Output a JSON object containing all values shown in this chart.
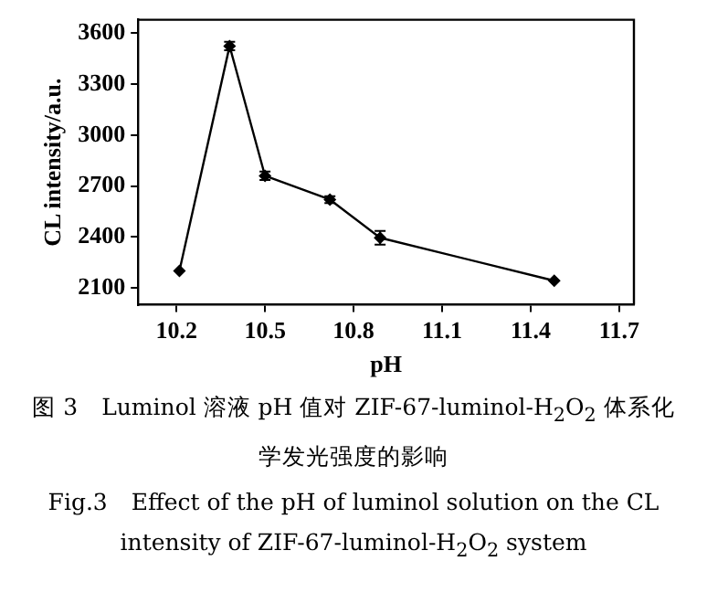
{
  "chart_data": {
    "type": "line",
    "xlabel": "pH",
    "ylabel": "CL intensity/a.u.",
    "x": [
      10.21,
      10.38,
      10.5,
      10.72,
      10.89,
      11.48
    ],
    "series": [
      {
        "color": "#000000",
        "values": [
          2200,
          3525,
          2760,
          2620,
          2395,
          2142
        ],
        "errors": [
          null,
          25,
          25,
          20,
          40,
          null
        ]
      }
    ],
    "xlim": [
      10.07,
      11.75
    ],
    "xticks": [
      {
        "value": 10.2,
        "label": "10.2"
      },
      {
        "value": 10.5,
        "label": "10.5"
      },
      {
        "value": 10.8,
        "label": "10.8"
      },
      {
        "value": 11.1,
        "label": "11.1"
      },
      {
        "value": 11.4,
        "label": "11.4"
      },
      {
        "value": 11.7,
        "label": "11.7"
      }
    ],
    "ylim": [
      2000,
      3680
    ],
    "yticks": [
      2100,
      2400,
      2700,
      3000,
      3300,
      3600
    ],
    "grid": false,
    "legend": false,
    "marker": "diamond",
    "line_style": "solid",
    "annotations": [
      "图 3　Luminol 溶液 pH 值对 ZIF-67-luminol-H$_{2}$O$_{2}$ 体系化学发光强度的影响",
      "Fig.3　Effect of the pH of luminol solution on the CL intensity of ZIF-67-luminol-H$_{2}$O$_{2}$ system"
    ]
  }
}
